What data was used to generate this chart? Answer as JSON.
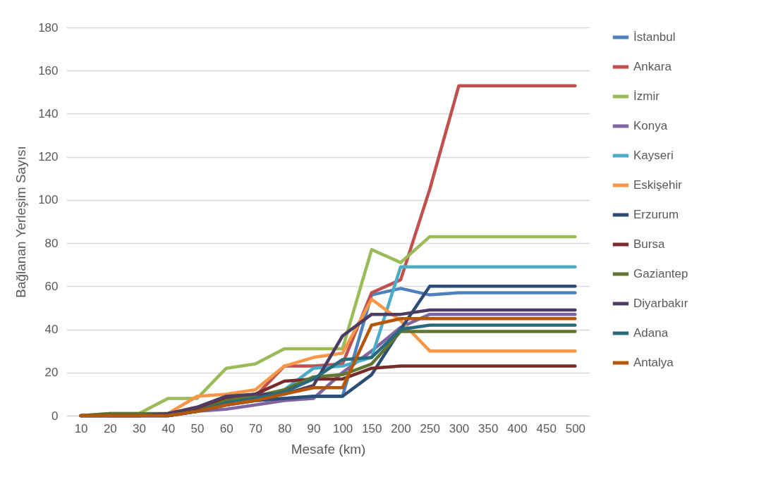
{
  "chart_data": {
    "type": "line",
    "xlabel": "Mesafe (km)",
    "ylabel": "Bağlanan Yerleşim Sayısı",
    "categories": [
      "10",
      "20",
      "30",
      "40",
      "50",
      "60",
      "70",
      "80",
      "90",
      "100",
      "150",
      "200",
      "250",
      "300",
      "350",
      "400",
      "450",
      "500"
    ],
    "ylim": [
      0,
      180
    ],
    "yticks": [
      0,
      20,
      40,
      60,
      80,
      100,
      120,
      140,
      160,
      180
    ],
    "grid": "y",
    "legend": "right",
    "series": [
      {
        "name": "İstanbul",
        "color": "#4f81bd",
        "values": [
          null,
          null,
          null,
          1,
          2,
          5,
          7,
          8,
          9,
          9,
          56,
          59,
          56,
          57,
          57,
          57,
          57,
          57
        ]
      },
      {
        "name": "Ankara",
        "color": "#c0504d",
        "values": [
          null,
          null,
          0,
          1,
          3,
          7,
          9,
          23,
          23,
          24,
          57,
          63,
          105,
          153,
          153,
          153,
          153,
          153
        ]
      },
      {
        "name": "İzmir",
        "color": "#9bbb59",
        "values": [
          0,
          1,
          1,
          8,
          8,
          22,
          24,
          31,
          31,
          31,
          77,
          71,
          83,
          83,
          83,
          83,
          83,
          83
        ]
      },
      {
        "name": "Konya",
        "color": "#8064a2",
        "values": [
          null,
          null,
          0,
          0,
          2,
          3,
          5,
          7,
          8,
          20,
          30,
          41,
          47,
          47,
          47,
          47,
          47,
          47
        ]
      },
      {
        "name": "Kayseri",
        "color": "#4bacc6",
        "values": [
          null,
          null,
          null,
          null,
          null,
          null,
          8,
          12,
          22,
          23,
          27,
          69,
          69,
          69,
          69,
          69,
          69,
          69
        ]
      },
      {
        "name": "Eskişehir",
        "color": "#f79646",
        "values": [
          null,
          0,
          0,
          1,
          9,
          10,
          12,
          23,
          27,
          29,
          54,
          44,
          30,
          30,
          30,
          30,
          30,
          30
        ]
      },
      {
        "name": "Erzurum",
        "color": "#2c4d75",
        "values": [
          0,
          0,
          0,
          0,
          2,
          5,
          7,
          8,
          9,
          9,
          19,
          40,
          60,
          60,
          60,
          60,
          60,
          60
        ]
      },
      {
        "name": "Bursa",
        "color": "#772c2a",
        "values": [
          0,
          0,
          0,
          1,
          3,
          8,
          10,
          16,
          17,
          17,
          22,
          23,
          23,
          23,
          23,
          23,
          23,
          23
        ]
      },
      {
        "name": "Gaziantep",
        "color": "#5f7530",
        "values": [
          0,
          1,
          1,
          1,
          2,
          7,
          9,
          12,
          18,
          19,
          24,
          39,
          39,
          39,
          39,
          39,
          39,
          39
        ]
      },
      {
        "name": "Diyarbakır",
        "color": "#4d3b62",
        "values": [
          0,
          0,
          0,
          1,
          4,
          9,
          10,
          10,
          14,
          37,
          47,
          47,
          49,
          49,
          49,
          49,
          49,
          49
        ]
      },
      {
        "name": "Adana",
        "color": "#276a7c",
        "values": [
          0,
          0,
          0,
          0,
          2,
          6,
          8,
          11,
          17,
          26,
          27,
          40,
          42,
          42,
          42,
          42,
          42,
          42
        ]
      },
      {
        "name": "Antalya",
        "color": "#b65708",
        "values": [
          0,
          0,
          0,
          0,
          2,
          5,
          7,
          10,
          13,
          13,
          42,
          45,
          45,
          45,
          45,
          45,
          45,
          45
        ]
      }
    ]
  }
}
